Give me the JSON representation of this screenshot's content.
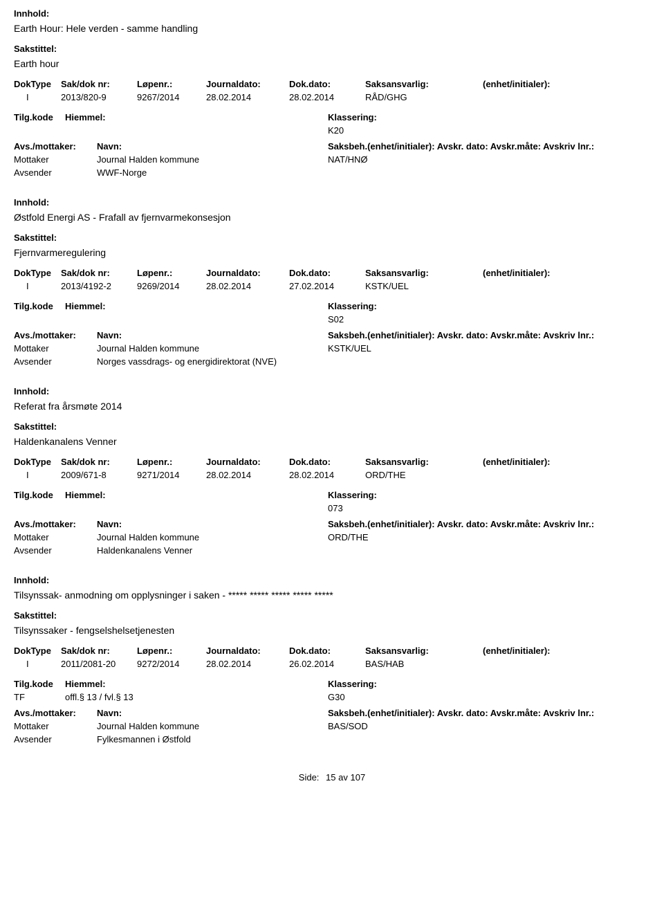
{
  "labels": {
    "innhold": "Innhold:",
    "sakstittel": "Sakstittel:",
    "doktype": "DokType",
    "sakdoknr": "Sak/dok nr:",
    "lopenr": "Løpenr.:",
    "journaldato": "Journaldato:",
    "dokdato": "Dok.dato:",
    "saksansvarlig": "Saksansvarlig:",
    "enhet": "(enhet/initialer):",
    "tilgkode": "Tilg.kode",
    "hiemmel": "Hiemmel:",
    "klassering": "Klassering:",
    "avsmottaker": "Avs./mottaker:",
    "navn": "Navn:",
    "saksbeh": "Saksbeh.(enhet/initialer): Avskr. dato:  Avskr.måte:  Avskriv lnr.:",
    "mottaker": "Mottaker",
    "avsender": "Avsender",
    "side": "Side:"
  },
  "records": [
    {
      "innhold": "Earth Hour: Hele verden - samme handling",
      "sakstittel": "Earth hour",
      "doktype": "I",
      "sakdok": "2013/820-9",
      "lopenr": "9267/2014",
      "jdato": "28.02.2014",
      "ddato": "28.02.2014",
      "saksans": "RÅD/GHG",
      "tilg": "",
      "hjemmel": "",
      "klass": "K20",
      "mottaker_navn": "Journal Halden kommune",
      "mottaker_code": "NAT/HNØ",
      "avsender_navn": "WWF-Norge"
    },
    {
      "innhold": "Østfold Energi AS - Frafall av fjernvarmekonsesjon",
      "sakstittel": "Fjernvarmeregulering",
      "doktype": "I",
      "sakdok": "2013/4192-2",
      "lopenr": "9269/2014",
      "jdato": "28.02.2014",
      "ddato": "27.02.2014",
      "saksans": "KSTK/UEL",
      "tilg": "",
      "hjemmel": "",
      "klass": "S02",
      "mottaker_navn": "Journal Halden kommune",
      "mottaker_code": "KSTK/UEL",
      "avsender_navn": "Norges vassdrags- og energidirektorat (NVE)"
    },
    {
      "innhold": "Referat fra årsmøte 2014",
      "sakstittel": "Haldenkanalens Venner",
      "doktype": "I",
      "sakdok": "2009/671-8",
      "lopenr": "9271/2014",
      "jdato": "28.02.2014",
      "ddato": "28.02.2014",
      "saksans": "ORD/THE",
      "tilg": "",
      "hjemmel": "",
      "klass": "073",
      "mottaker_navn": "Journal Halden kommune",
      "mottaker_code": "ORD/THE",
      "avsender_navn": "Haldenkanalens Venner"
    },
    {
      "innhold": "Tilsynssak- anmodning om opplysninger i saken - ***** ***** ***** ***** *****",
      "sakstittel": "Tilsynssaker - fengselshelsetjenesten",
      "doktype": "I",
      "sakdok": "2011/2081-20",
      "lopenr": "9272/2014",
      "jdato": "28.02.2014",
      "ddato": "26.02.2014",
      "saksans": "BAS/HAB",
      "tilg": "TF",
      "hjemmel": "offl.§ 13 / fvl.§ 13",
      "klass": "G30",
      "mottaker_navn": "Journal Halden kommune",
      "mottaker_code": "BAS/SOD",
      "avsender_navn": "Fylkesmannen i Østfold"
    }
  ],
  "footer": {
    "page": "15",
    "of": "av",
    "total": "107"
  }
}
